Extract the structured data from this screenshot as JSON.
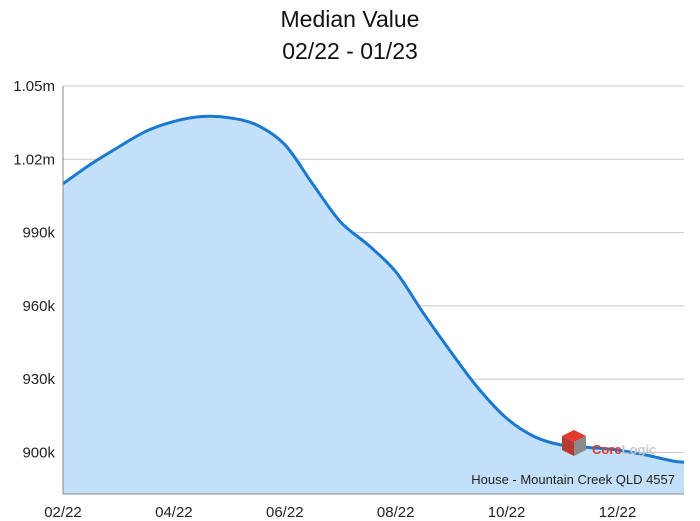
{
  "title": "Median Value",
  "subtitle": "02/22 - 01/23",
  "footnote": "House - Mountain Creek QLD 4557",
  "watermark": {
    "part1": "Core",
    "part2": "Logic",
    "color1": "#e23b2e",
    "color2": "#c8c8c8"
  },
  "colors": {
    "line": "#1a78d0",
    "fill": "#c3e0fb",
    "grid": "#c8c8c8",
    "axis": "#888888"
  },
  "chart_data": {
    "type": "area",
    "title": "Median Value",
    "subtitle": "02/22 - 01/23",
    "x_tick_labels": [
      "02/22",
      "04/22",
      "06/22",
      "08/22",
      "10/22",
      "12/22"
    ],
    "y_tick_labels": [
      "1.05m",
      "1.02m",
      "990k",
      "960k",
      "930k",
      "900k"
    ],
    "y_ticks": [
      1050000,
      1020000,
      990000,
      960000,
      930000,
      900000
    ],
    "ylim": [
      883000,
      1050000
    ],
    "x_range_months": [
      0,
      11.2
    ],
    "grid": "horizontal",
    "series": [
      {
        "x": [
          0,
          0.5,
          1,
          1.5,
          2,
          2.5,
          3,
          3.5,
          4,
          4.5,
          5,
          5.5,
          6,
          6.5,
          7,
          7.5,
          8,
          8.5,
          9,
          9.5,
          10,
          10.5,
          11,
          11.2
        ],
        "values": [
          1010000,
          1018000,
          1025000,
          1031500,
          1035500,
          1037500,
          1037000,
          1034000,
          1026000,
          1010000,
          994500,
          985000,
          974000,
          957000,
          941000,
          926000,
          914000,
          906500,
          903000,
          902000,
          901000,
          899000,
          896500,
          896000
        ]
      }
    ]
  }
}
